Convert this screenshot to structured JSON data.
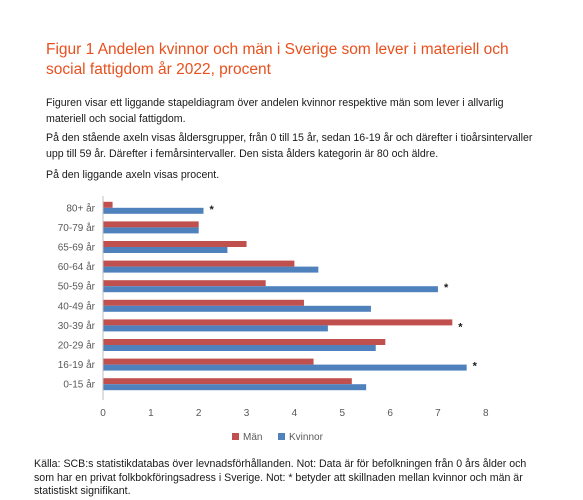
{
  "header": {
    "title": "Figur 1 Andelen kvinnor och män i Sverige som lever i materiell och social fattigdom år 2022, procent"
  },
  "description": {
    "p1": "Figuren visar ett liggande stapeldiagram över andelen kvinnor respektive män som lever i allvarlig materiell och social fattigdom.",
    "p2": "På den stående axeln visas åldersgrupper, från 0 till 15 år, sedan 16-19 år och därefter i tioårsintervaller upp till 59 år. Därefter i femårsintervaller. Den sista ålders kategorin är 80 och äldre.",
    "p3": "På den liggande axeln visas procent."
  },
  "source": {
    "text": "Källa: SCB:s statistikdatabas över levnadsförhållanden. Not: Data är för befolkningen från 0 års ålder och som har en privat folkbokföringsadress i Sverige. Not: * betyder att skillnaden mellan kvinnor och män är statistiskt signifikant."
  },
  "chart_data": {
    "type": "bar",
    "orientation": "horizontal",
    "categories": [
      "0-15 år",
      "16-19 år",
      "20-29 år",
      "30-39 år",
      "40-49 år",
      "50-59 år",
      "60-64 år",
      "65-69 år",
      "70-79 år",
      "80+ år"
    ],
    "series": [
      {
        "name": "Män",
        "color": "#c0504d",
        "values": [
          5.2,
          4.4,
          5.9,
          7.3,
          4.2,
          3.4,
          4.0,
          3.0,
          2.0,
          0.2
        ]
      },
      {
        "name": "Kvinnor",
        "color": "#4f81bd",
        "values": [
          5.5,
          7.6,
          5.7,
          4.7,
          5.6,
          7.0,
          4.5,
          2.6,
          2.0,
          2.1
        ]
      }
    ],
    "significant": [
      "",
      "*",
      "",
      "*",
      "",
      "*",
      "",
      "",
      "",
      "*"
    ],
    "xlim": [
      0,
      8
    ],
    "xticks": [
      "0",
      "1",
      "2",
      "3",
      "4",
      "5",
      "6",
      "7",
      "8"
    ],
    "xlabel": "",
    "ylabel": "",
    "grid": false,
    "legend": "bottom"
  }
}
